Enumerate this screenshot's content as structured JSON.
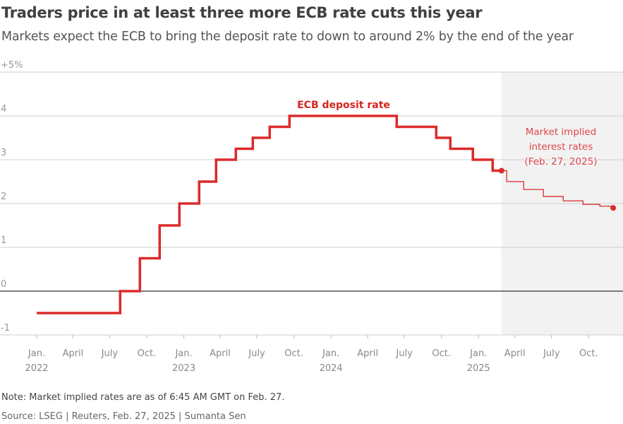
{
  "chart_data": {
    "type": "line",
    "title": "Traders price in at least three more ECB rate cuts this year",
    "subtitle": "Markets expect the ECB to bring the deposit rate to down to around 2% by the end of the year",
    "ylim": [
      -1,
      5
    ],
    "yticks": [
      "+5%",
      "4",
      "3",
      "2",
      "1",
      "0",
      "-1"
    ],
    "ytick_values": [
      5,
      4,
      3,
      2,
      1,
      0,
      -1
    ],
    "xlim": [
      "2021-11-01",
      "2025-12-31"
    ],
    "xticks": [
      {
        "date": "2022-01-01",
        "label": "Jan.",
        "year": "2022"
      },
      {
        "date": "2022-04-01",
        "label": "April",
        "year": ""
      },
      {
        "date": "2022-07-01",
        "label": "July",
        "year": ""
      },
      {
        "date": "2022-10-01",
        "label": "Oct.",
        "year": ""
      },
      {
        "date": "2023-01-01",
        "label": "Jan.",
        "year": "2023"
      },
      {
        "date": "2023-04-01",
        "label": "April",
        "year": ""
      },
      {
        "date": "2023-07-01",
        "label": "July",
        "year": ""
      },
      {
        "date": "2023-10-01",
        "label": "Oct.",
        "year": ""
      },
      {
        "date": "2024-01-01",
        "label": "Jan.",
        "year": "2024"
      },
      {
        "date": "2024-04-01",
        "label": "April",
        "year": ""
      },
      {
        "date": "2024-07-01",
        "label": "July",
        "year": ""
      },
      {
        "date": "2024-10-01",
        "label": "Oct.",
        "year": ""
      },
      {
        "date": "2025-01-01",
        "label": "Jan.",
        "year": "2025"
      },
      {
        "date": "2025-04-01",
        "label": "April",
        "year": ""
      },
      {
        "date": "2025-07-01",
        "label": "July",
        "year": ""
      },
      {
        "date": "2025-10-01",
        "label": "Oct.",
        "year": ""
      }
    ],
    "grid": true,
    "series": [
      {
        "name": "ECB deposit rate",
        "color": "#dc2a2a",
        "step": true,
        "points": [
          [
            "2022-01-01",
            -0.5
          ],
          [
            "2022-07-27",
            0.0
          ],
          [
            "2022-09-14",
            0.75
          ],
          [
            "2022-11-02",
            1.5
          ],
          [
            "2022-12-21",
            2.0
          ],
          [
            "2023-02-08",
            2.5
          ],
          [
            "2023-03-22",
            3.0
          ],
          [
            "2023-05-10",
            3.25
          ],
          [
            "2023-06-21",
            3.5
          ],
          [
            "2023-08-02",
            3.75
          ],
          [
            "2023-09-20",
            4.0
          ],
          [
            "2024-06-12",
            3.75
          ],
          [
            "2024-09-18",
            3.5
          ],
          [
            "2024-10-23",
            3.25
          ],
          [
            "2024-12-18",
            3.0
          ],
          [
            "2025-02-05",
            2.75
          ],
          [
            "2025-02-27",
            2.75
          ]
        ]
      },
      {
        "name": "Market implied interest rates (Feb. 27, 2025)",
        "color": "#dc2a2a",
        "step": true,
        "points": [
          [
            "2025-02-27",
            2.75
          ],
          [
            "2025-03-12",
            2.5
          ],
          [
            "2025-04-23",
            2.32
          ],
          [
            "2025-06-11",
            2.16
          ],
          [
            "2025-07-30",
            2.06
          ],
          [
            "2025-09-17",
            1.98
          ],
          [
            "2025-10-29",
            1.94
          ],
          [
            "2025-12-01",
            1.9
          ]
        ]
      }
    ],
    "shaded_region": {
      "from": "2025-02-27",
      "color": "#f2f2f2"
    },
    "annotations": {
      "ecb_label": "ECB deposit rate",
      "market_label": [
        "Market implied",
        "interest rates",
        "(Feb. 27, 2025)"
      ]
    }
  },
  "note": "Note: Market implied rates are as of 6:45 AM GMT on Feb. 27.",
  "source": "Source: LSEG | Reuters, Feb. 27, 2025 | Sumanta Sen"
}
